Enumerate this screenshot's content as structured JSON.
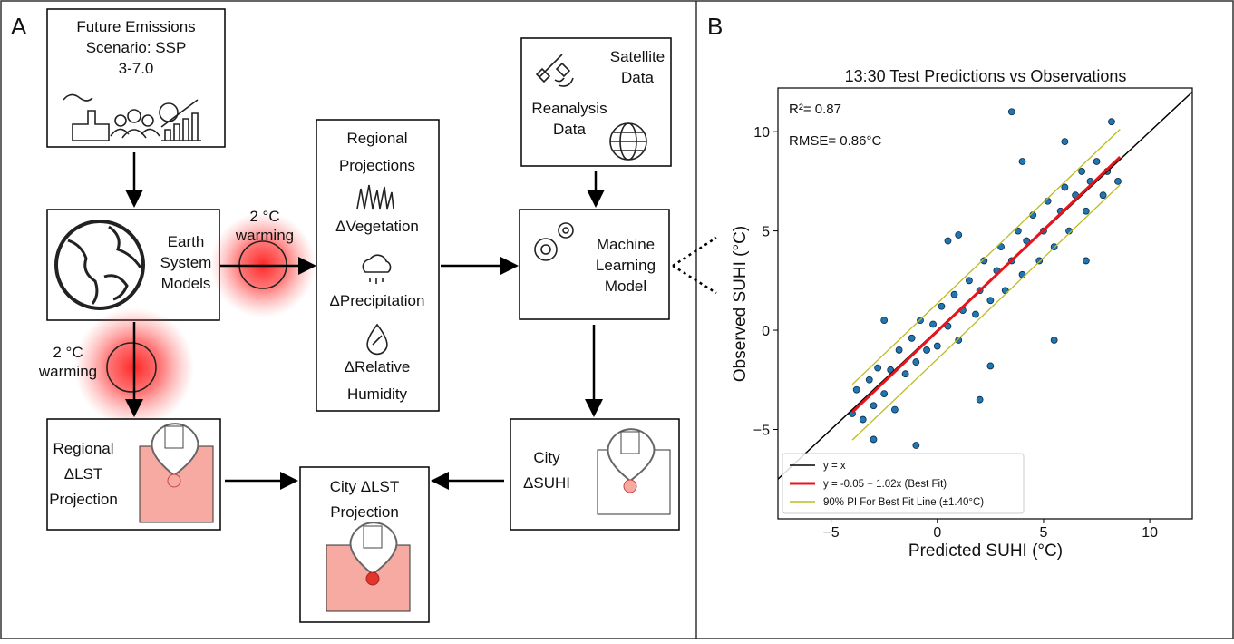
{
  "panel_a": {
    "label": "A",
    "emissions": [
      "Future Emissions",
      "Scenario: SSP",
      "3-7.0"
    ],
    "earth": [
      "Earth",
      "System",
      "Models"
    ],
    "warming_1": [
      "2 °C",
      "warming"
    ],
    "warming_2": [
      "2 °C",
      "warming"
    ],
    "regional": [
      "Regional",
      "Projections",
      "ΔVegetation",
      "ΔPrecipitation",
      "ΔRelative",
      "Humidity"
    ],
    "data_sources": [
      "Satellite",
      "Data",
      "Reanalysis",
      "Data"
    ],
    "ml": [
      "Machine",
      "Learning",
      "Model"
    ],
    "regional_lst": [
      "Regional",
      "ΔLST",
      "Projection"
    ],
    "city_lst": [
      "City ΔLST",
      "Projection"
    ],
    "city_suhi": [
      "City",
      "ΔSUHI"
    ]
  },
  "chart_data": {
    "type": "scatter",
    "panel_label": "B",
    "title": "13:30 Test Predictions vs Observations",
    "xlabel": "Predicted SUHI (°C)",
    "ylabel": "Observed SUHI (°C)",
    "annotations": [
      "R²= 0.87",
      "RMSE= 0.86°C"
    ],
    "xlim": [
      -7.5,
      12
    ],
    "ylim": [
      -9.5,
      12.2
    ],
    "xticks": [
      {
        "value": -5,
        "label": "−5"
      },
      0,
      5,
      10
    ],
    "yticks": [
      {
        "value": -5,
        "label": "−5"
      },
      0,
      5,
      10
    ],
    "color": "#1f77b4",
    "x": [
      -4,
      -3.8,
      -3.5,
      -3.2,
      -3,
      -2.8,
      -2.5,
      -2.2,
      -2,
      -1.8,
      -1.5,
      -1.2,
      -1,
      -0.8,
      -0.5,
      -0.2,
      0,
      0.2,
      0.5,
      0.8,
      1,
      1.2,
      1.5,
      1.8,
      2,
      2.2,
      2.5,
      2.8,
      3,
      3.2,
      3.5,
      3.8,
      4,
      4.2,
      4.5,
      4.8,
      5,
      5.2,
      5.5,
      5.8,
      6,
      6.2,
      6.5,
      6.8,
      7,
      7.2,
      7.5,
      7.8,
      8,
      8.2,
      8.5,
      3.5,
      -1,
      5.5,
      2,
      0.5,
      4,
      -2.5,
      6,
      7,
      1,
      2.5,
      -3
    ],
    "values": [
      -4.2,
      -3,
      -4.5,
      -2.5,
      -3.8,
      -1.9,
      -3.2,
      -2,
      -4,
      -1,
      -2.2,
      -0.4,
      -1.6,
      0.5,
      -1,
      0.3,
      -0.8,
      1.2,
      0.2,
      1.8,
      -0.5,
      1,
      2.5,
      0.8,
      2,
      3.5,
      1.5,
      3,
      4.2,
      2,
      3.5,
      5,
      2.8,
      4.5,
      5.8,
      3.5,
      5,
      6.5,
      4.2,
      6,
      7.2,
      5,
      6.8,
      8,
      6,
      7.5,
      8.5,
      6.8,
      8,
      10.5,
      7.5,
      11,
      -5.8,
      -0.5,
      -3.5,
      4.5,
      8.5,
      0.5,
      9.5,
      3.5,
      4.8,
      -1.8,
      -5.5
    ],
    "lines": [
      {
        "name": "y = x",
        "color": "#000000"
      },
      {
        "name": "y = -0.05 + 1.02x (Best Fit)",
        "color": "#e8141c",
        "intercept": -0.05,
        "slope": 1.02,
        "x_range": [
          -4,
          8.6
        ]
      },
      {
        "name": "90% PI For Best Fit Line (±1.40°C)",
        "color": "#bcbd22",
        "offset": 1.4
      }
    ]
  }
}
